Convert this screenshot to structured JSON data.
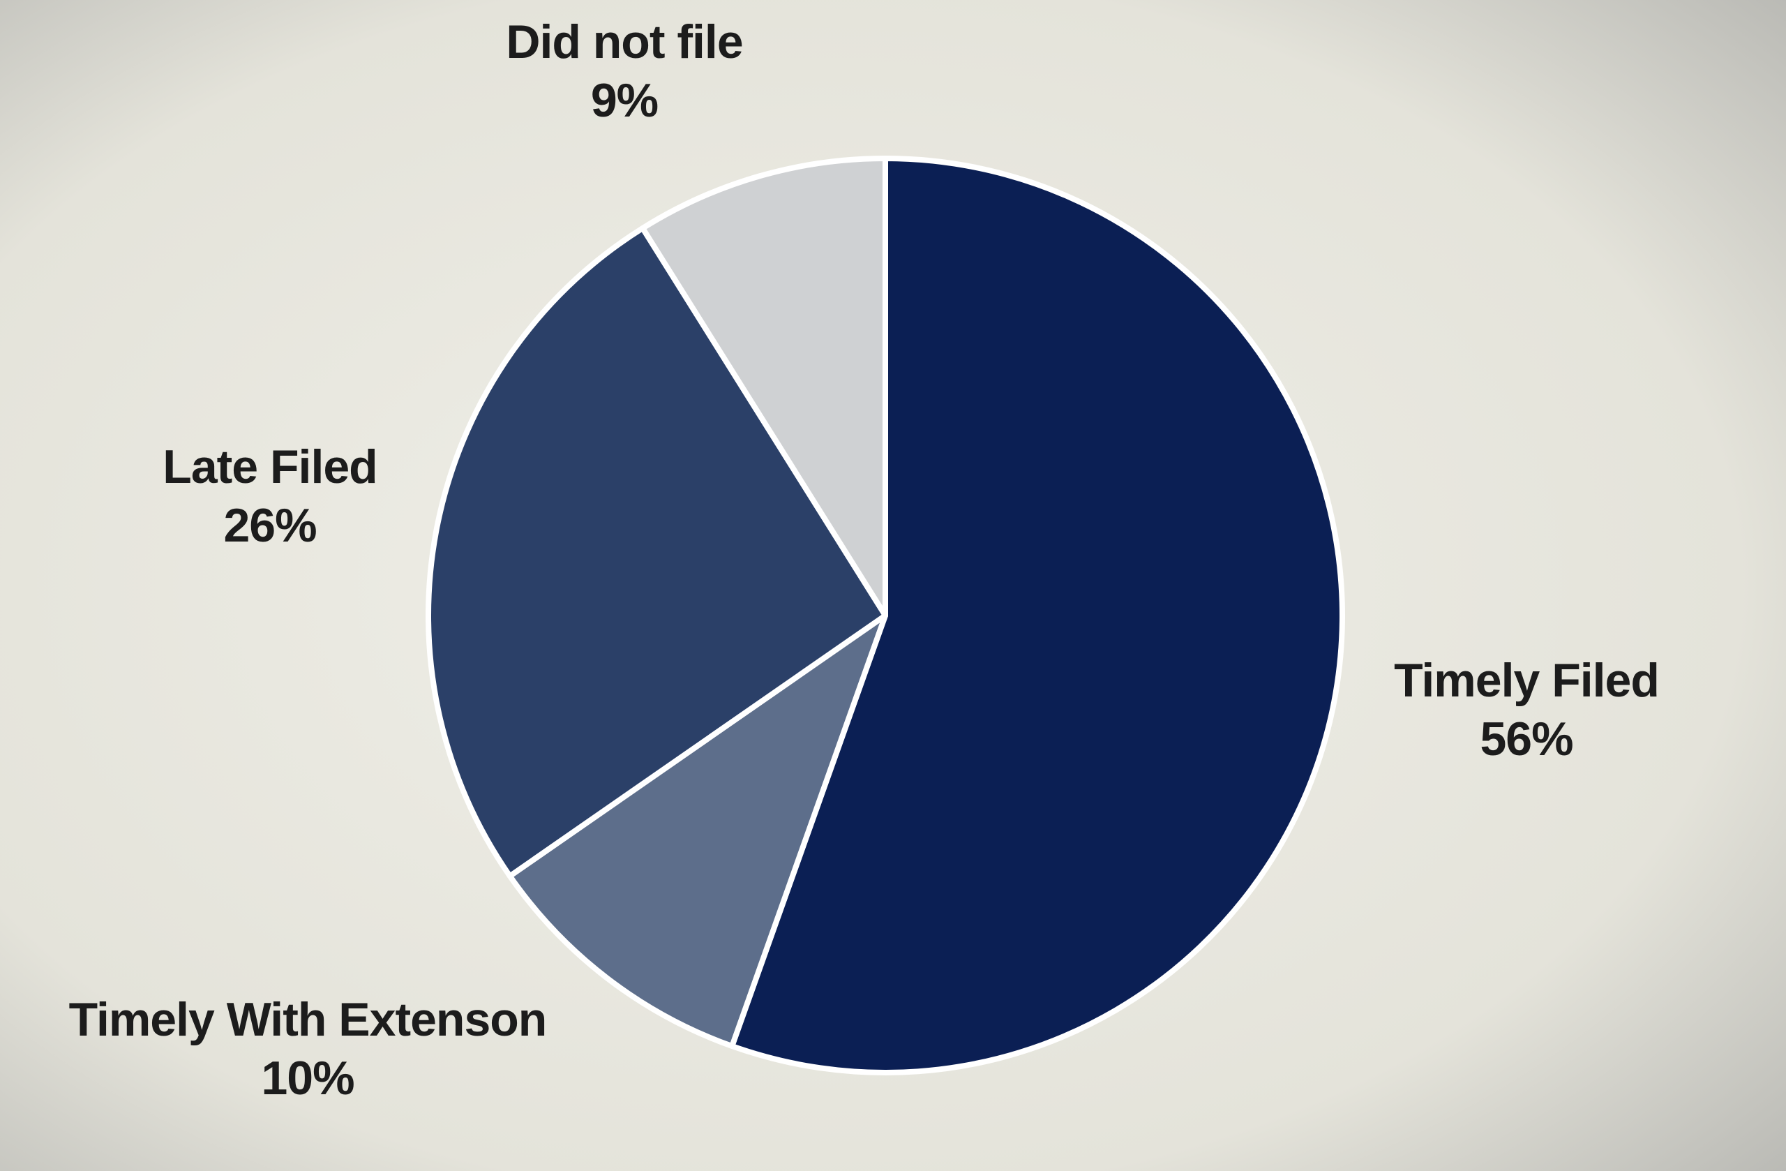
{
  "chart_data": {
    "type": "pie",
    "categories": [
      "Timely Filed",
      "Timely With Extenson",
      "Late Filed",
      "Did not file"
    ],
    "values": [
      56,
      10,
      26,
      9
    ],
    "value_labels": [
      "56%",
      "10%",
      "26%",
      "9%"
    ],
    "colors": [
      "#0b1f54",
      "#5d6e8b",
      "#2b4068",
      "#cfd1d3"
    ]
  }
}
